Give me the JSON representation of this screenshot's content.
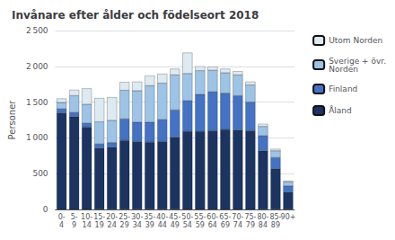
{
  "chart_data": {
    "type": "bar",
    "title": "Invånare efter ålder och födelseort 2018",
    "ylabel": "Personer",
    "categories": [
      "0-\n4",
      "5-\n9",
      "10-\n14",
      "15-\n19",
      "20-\n24",
      "25-\n29",
      "30-\n34",
      "35-\n39",
      "40-\n44",
      "45-\n49",
      "50-\n54",
      "55-\n59",
      "60-\n64",
      "65-\n69",
      "70-\n74",
      "75-\n79",
      "80-\n84",
      "85-\n89",
      "90+"
    ],
    "series": [
      {
        "name": "Åland",
        "color": "#1c3461",
        "values": [
          1350,
          1295,
          1150,
          855,
          870,
          965,
          950,
          940,
          950,
          1010,
          1090,
          1090,
          1100,
          1115,
          1110,
          1100,
          820,
          570,
          240
        ]
      },
      {
        "name": "Finland",
        "color": "#4472c4",
        "values": [
          55,
          60,
          55,
          60,
          65,
          300,
          270,
          280,
          305,
          380,
          430,
          520,
          545,
          510,
          480,
          400,
          210,
          155,
          90
        ]
      },
      {
        "name": "Sverige + övr.\nNorden",
        "color": "#9dc3e6",
        "values": [
          90,
          235,
          265,
          310,
          310,
          400,
          440,
          510,
          510,
          490,
          380,
          330,
          300,
          285,
          290,
          240,
          130,
          95,
          55
        ]
      },
      {
        "name": "Utom Norden",
        "color": "#deeaf1",
        "values": [
          55,
          80,
          220,
          330,
          320,
          115,
          125,
          140,
          130,
          85,
          290,
          60,
          50,
          55,
          50,
          45,
          35,
          25,
          15
        ]
      }
    ],
    "stacked": true,
    "ylim": [
      0,
      2500
    ],
    "yticks": [
      0,
      500,
      {
        "value": 1000,
        "label": "1 000"
      },
      {
        "value": 1500,
        "label": "1 500"
      },
      {
        "value": 2000,
        "label": "2 000"
      },
      {
        "value": 2500,
        "label": "2 500"
      }
    ],
    "grid": true,
    "legend": "right"
  }
}
